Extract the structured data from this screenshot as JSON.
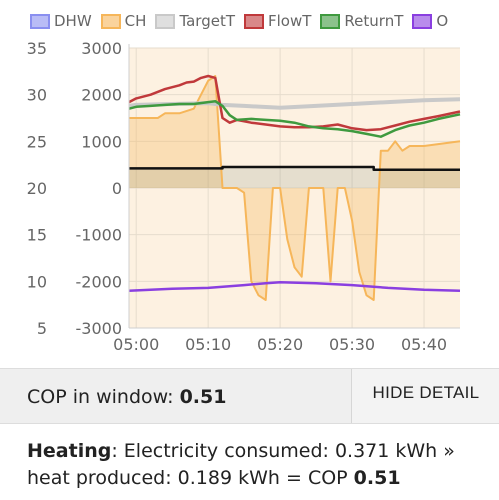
{
  "chart_data": {
    "type": "line",
    "legend": [
      {
        "name": "DHW",
        "color": "#8a8ff0"
      },
      {
        "name": "CH",
        "color": "#f6b65a"
      },
      {
        "name": "TargetT",
        "color": "#c9c9c9"
      },
      {
        "name": "FlowT",
        "color": "#c0393b"
      },
      {
        "name": "ReturnT",
        "color": "#3f9a3f"
      },
      {
        "name": "O",
        "color": "#8a3fe0"
      }
    ],
    "left_axis_ticks": [
      "35",
      "30",
      "25",
      "20",
      "15",
      "10",
      "5"
    ],
    "left_ylim": [
      5,
      35
    ],
    "right_axis_ticks": [
      "3000",
      "2000",
      "1000",
      "0",
      "-1000",
      "-2000",
      "-3000"
    ],
    "right_ylim": [
      -3000,
      3000
    ],
    "x_ticks": [
      "05:00",
      "05:10",
      "05:20",
      "05:30",
      "05:40"
    ],
    "xlim": [
      "04:59",
      "05:45"
    ],
    "series": [
      {
        "name": "FlowT",
        "axis": "left",
        "color": "#c0393b",
        "x": [
          "04:59",
          "05:00",
          "05:02",
          "05:04",
          "05:06",
          "05:07",
          "05:08",
          "05:09",
          "05:10",
          "05:11",
          "05:12",
          "05:13",
          "05:14",
          "05:16",
          "05:18",
          "05:20",
          "05:22",
          "05:24",
          "05:26",
          "05:28",
          "05:30",
          "05:32",
          "05:34",
          "05:36",
          "05:38",
          "05:40",
          "05:42",
          "05:45"
        ],
        "y": [
          29.2,
          29.6,
          30.0,
          30.6,
          31.0,
          31.3,
          31.4,
          31.8,
          32.0,
          31.8,
          27.5,
          27.0,
          27.3,
          27.0,
          26.8,
          26.6,
          26.5,
          26.5,
          26.6,
          26.8,
          26.4,
          26.2,
          26.3,
          26.7,
          27.1,
          27.4,
          27.7,
          28.2
        ]
      },
      {
        "name": "ReturnT",
        "axis": "left",
        "color": "#3f9a3f",
        "x": [
          "04:59",
          "05:00",
          "05:02",
          "05:04",
          "05:06",
          "05:08",
          "05:10",
          "05:11",
          "05:12",
          "05:13",
          "05:14",
          "05:16",
          "05:18",
          "05:20",
          "05:22",
          "05:24",
          "05:26",
          "05:28",
          "05:30",
          "05:32",
          "05:34",
          "05:36",
          "05:38",
          "05:40",
          "05:42",
          "05:45"
        ],
        "y": [
          28.5,
          28.7,
          28.8,
          28.9,
          29.0,
          29.0,
          29.2,
          29.3,
          28.8,
          27.8,
          27.3,
          27.4,
          27.3,
          27.2,
          27.0,
          26.6,
          26.4,
          26.3,
          26.1,
          25.8,
          25.5,
          26.2,
          26.7,
          27.0,
          27.4,
          27.9
        ]
      },
      {
        "name": "TargetT",
        "axis": "left",
        "color": "#c9c9c9",
        "x": [
          "04:59",
          "05:00",
          "05:05",
          "05:10",
          "05:12",
          "05:15",
          "05:20",
          "05:25",
          "05:30",
          "05:35",
          "05:40",
          "05:45"
        ],
        "y": [
          28.8,
          28.9,
          29.0,
          29.1,
          28.9,
          28.8,
          28.6,
          28.8,
          29.0,
          29.2,
          29.4,
          29.5
        ]
      },
      {
        "name": "O",
        "axis": "left",
        "color": "#8a3fe0",
        "x": [
          "04:59",
          "05:05",
          "05:10",
          "05:15",
          "05:18",
          "05:20",
          "05:25",
          "05:30",
          "05:35",
          "05:40",
          "05:45"
        ],
        "y": [
          9.0,
          9.2,
          9.3,
          9.6,
          9.8,
          9.9,
          9.8,
          9.6,
          9.3,
          9.1,
          9.0
        ]
      },
      {
        "name": "HeatOutput",
        "axis": "right",
        "color": "#111111",
        "x": [
          "04:59",
          "05:12",
          "05:12",
          "05:33",
          "05:33",
          "05:45"
        ],
        "y": [
          420,
          420,
          450,
          450,
          390,
          390
        ]
      },
      {
        "name": "CH",
        "axis": "right",
        "color": "#f6b65a",
        "x": [
          "04:59",
          "05:00",
          "05:02",
          "05:03",
          "05:04",
          "05:06",
          "05:08",
          "05:10",
          "05:11",
          "05:12",
          "05:13",
          "05:14",
          "05:15",
          "05:16",
          "05:17",
          "05:18",
          "05:19",
          "05:20",
          "05:21",
          "05:22",
          "05:23",
          "05:24",
          "05:25",
          "05:26",
          "05:27",
          "05:28",
          "05:29",
          "05:30",
          "05:31",
          "05:32",
          "05:33",
          "05:34",
          "05:35",
          "05:36",
          "05:37",
          "05:38",
          "05:40",
          "05:45"
        ],
        "y": [
          1500,
          1500,
          1500,
          1500,
          1600,
          1600,
          1700,
          2300,
          2400,
          0,
          0,
          0,
          -100,
          -2000,
          -2300,
          -2400,
          0,
          0,
          -1100,
          -1700,
          -1900,
          0,
          0,
          0,
          -2000,
          0,
          0,
          -700,
          -1800,
          -2300,
          -2400,
          800,
          800,
          1000,
          800,
          900,
          900,
          1000
        ]
      }
    ]
  },
  "cop_bar": {
    "label": "COP in window:",
    "value": "0.51",
    "button": "HIDE DETAIL"
  },
  "detail": {
    "heading": "Heating",
    "line1": ": Electricity consumed: 0.371 kWh »",
    "line2": "heat produced: 0.189 kWh = COP",
    "cop": "0.51"
  }
}
